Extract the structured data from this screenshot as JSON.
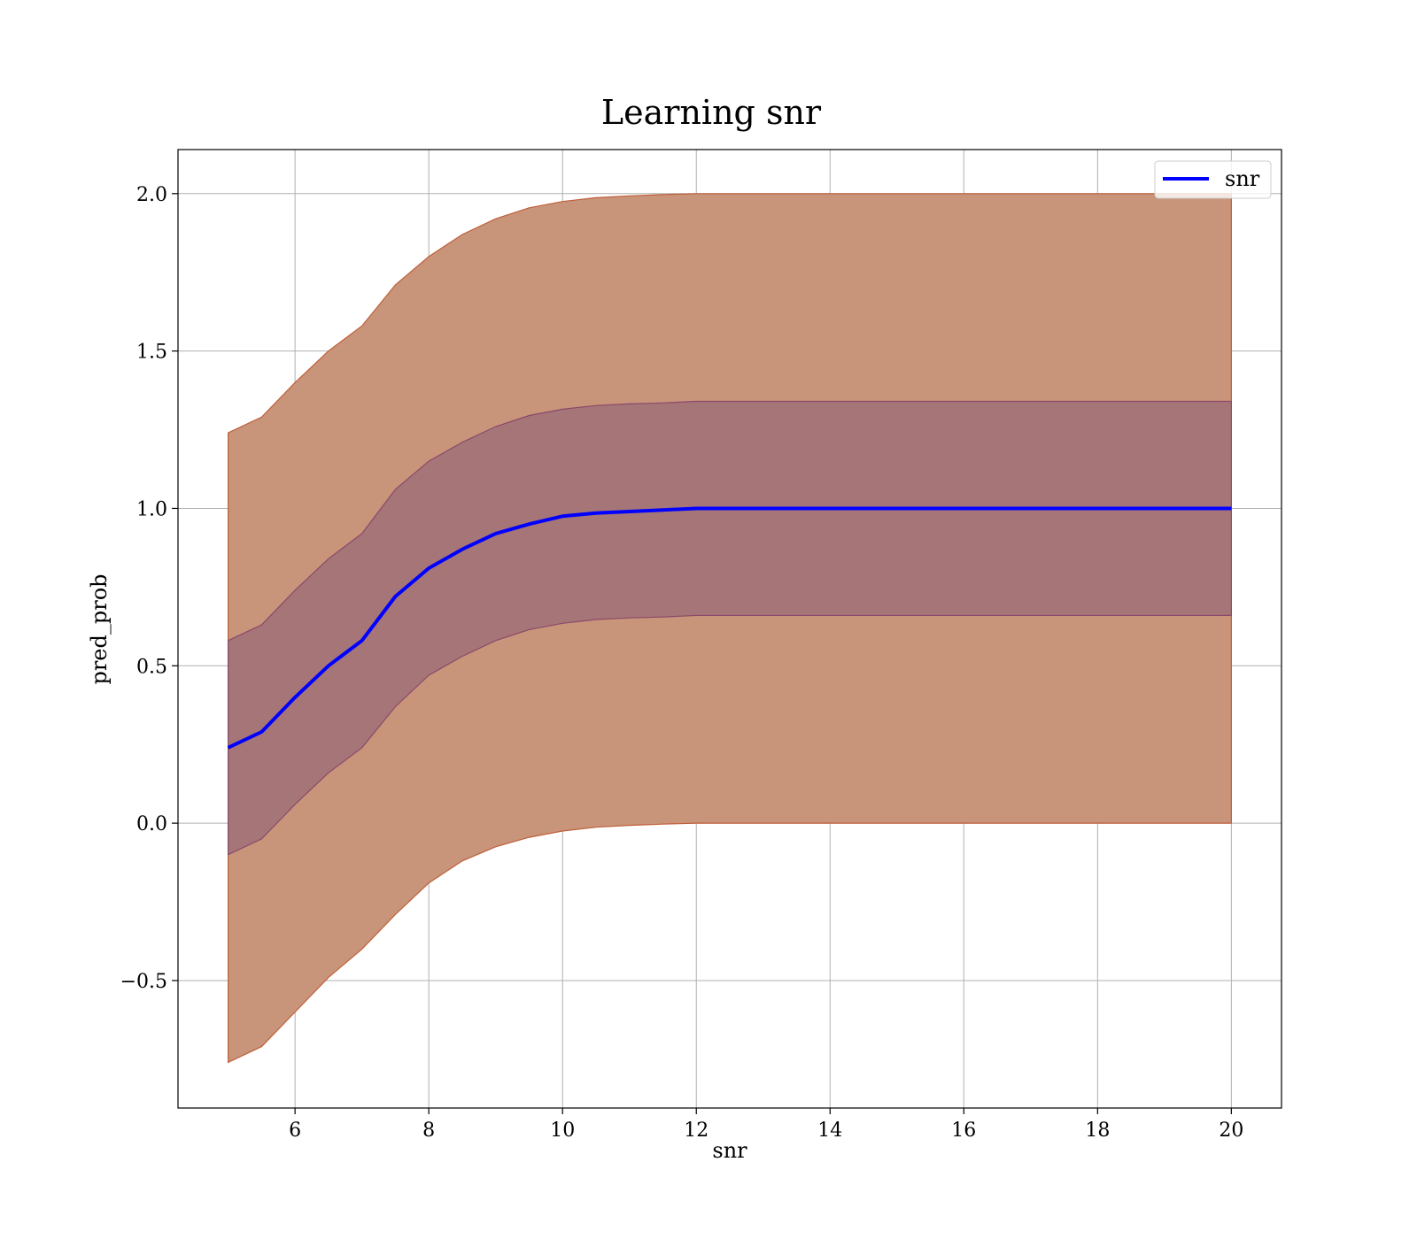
{
  "chart_data": {
    "type": "line",
    "title": "Learning snr",
    "xlabel": "snr",
    "ylabel": "pred_prob",
    "xlim": [
      4.25,
      20.75
    ],
    "ylim": [
      -0.905,
      2.14
    ],
    "xticks": [
      6,
      8,
      10,
      12,
      14,
      16,
      18,
      20
    ],
    "xtick_labels": [
      "6",
      "8",
      "10",
      "12",
      "14",
      "16",
      "18",
      "20"
    ],
    "yticks": [
      -0.5,
      0.0,
      0.5,
      1.0,
      1.5,
      2.0
    ],
    "ytick_labels": [
      "−0.5",
      "0.0",
      "0.5",
      "1.0",
      "1.5",
      "2.0"
    ],
    "grid": true,
    "legend_position": "top-right",
    "colors": {
      "line": "#0000ff",
      "outer_band": "#c8947a",
      "outer_band_edge": "#c0603a",
      "inner_band": "#a07078",
      "inner_band_edge": "#8a4a6a",
      "grid": "#b0b0b0"
    },
    "x": [
      5.0,
      5.5,
      6.0,
      6.5,
      7.0,
      7.5,
      8.0,
      8.5,
      9.0,
      9.5,
      10.0,
      10.5,
      11.0,
      11.5,
      12.0,
      13.0,
      14.0,
      15.0,
      16.0,
      17.0,
      18.0,
      19.0,
      20.0
    ],
    "series": [
      {
        "name": "snr",
        "values": [
          0.24,
          0.29,
          0.4,
          0.5,
          0.58,
          0.72,
          0.81,
          0.87,
          0.92,
          0.95,
          0.975,
          0.985,
          0.99,
          0.995,
          1.0,
          1.0,
          1.0,
          1.0,
          1.0,
          1.0,
          1.0,
          1.0,
          1.0
        ]
      }
    ],
    "bands": [
      {
        "lower": [
          -0.76,
          -0.71,
          -0.6,
          -0.49,
          -0.4,
          -0.29,
          -0.19,
          -0.12,
          -0.075,
          -0.045,
          -0.025,
          -0.013,
          -0.007,
          -0.003,
          0.0,
          0.0,
          0.0,
          0.0,
          0.0,
          0.0,
          0.0,
          0.0,
          0.0
        ],
        "upper": [
          1.24,
          1.29,
          1.4,
          1.5,
          1.58,
          1.71,
          1.8,
          1.87,
          1.92,
          1.955,
          1.975,
          1.987,
          1.993,
          1.997,
          2.0,
          2.0,
          2.0,
          2.0,
          2.0,
          2.0,
          2.0,
          2.0,
          2.0
        ]
      },
      {
        "lower": [
          -0.1,
          -0.05,
          0.06,
          0.16,
          0.24,
          0.37,
          0.47,
          0.53,
          0.58,
          0.615,
          0.635,
          0.647,
          0.652,
          0.655,
          0.66,
          0.66,
          0.66,
          0.66,
          0.66,
          0.66,
          0.66,
          0.66,
          0.66
        ],
        "upper": [
          0.58,
          0.63,
          0.74,
          0.84,
          0.92,
          1.06,
          1.15,
          1.21,
          1.26,
          1.295,
          1.315,
          1.327,
          1.332,
          1.335,
          1.34,
          1.34,
          1.34,
          1.34,
          1.34,
          1.34,
          1.34,
          1.34,
          1.34
        ]
      }
    ]
  }
}
